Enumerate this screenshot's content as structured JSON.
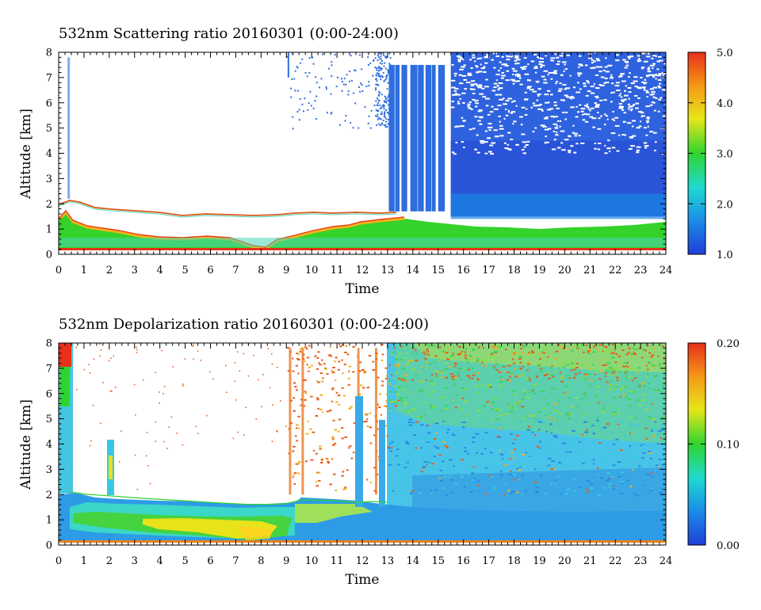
{
  "chart_data": [
    {
      "type": "heatmap",
      "title": "532nm Scattering ratio  20160301 (0:00-24:00)",
      "xlabel": "Time",
      "ylabel": "Altitude [km]",
      "xlim": [
        0,
        24
      ],
      "ylim": [
        0,
        8
      ],
      "x_ticks": [
        "0",
        "1",
        "2",
        "3",
        "4",
        "5",
        "6",
        "7",
        "8",
        "9",
        "10",
        "11",
        "12",
        "13",
        "14",
        "15",
        "16",
        "17",
        "18",
        "19",
        "20",
        "21",
        "22",
        "23",
        "24"
      ],
      "y_ticks": [
        "0",
        "1",
        "2",
        "3",
        "4",
        "5",
        "6",
        "7",
        "8"
      ],
      "colorbar": {
        "range": [
          1.0,
          5.0
        ],
        "tick_labels": [
          "1.0",
          "2.0",
          "3.0",
          "4.0",
          "5.0"
        ],
        "colormap": [
          "#1f3fd8",
          "#1b8de8",
          "#1fd9d0",
          "#2fd52f",
          "#e6e619",
          "#f59a16",
          "#e8301b"
        ]
      },
      "features": {
        "cloud_top_km": [
          2.1,
          2.0,
          1.9,
          1.8,
          1.75,
          1.7,
          1.7,
          1.65,
          1.6,
          1.6,
          1.65,
          1.7,
          1.7,
          1.75,
          1.6,
          1.5,
          1.45
        ],
        "valid_above_km_from_hour": 13,
        "signal_clear_from_hour": 15.5
      }
    },
    {
      "type": "heatmap",
      "title": "532nm Depolarization ratio  20160301 (0:00-24:00)",
      "xlabel": "Time",
      "ylabel": "Altitude [km]",
      "xlim": [
        0,
        24
      ],
      "ylim": [
        0,
        8
      ],
      "x_ticks": [
        "0",
        "1",
        "2",
        "3",
        "4",
        "5",
        "6",
        "7",
        "8",
        "9",
        "10",
        "11",
        "12",
        "13",
        "14",
        "15",
        "16",
        "17",
        "18",
        "19",
        "20",
        "21",
        "22",
        "23",
        "24"
      ],
      "y_ticks": [
        "0",
        "1",
        "2",
        "3",
        "4",
        "5",
        "6",
        "7",
        "8"
      ],
      "colorbar": {
        "range": [
          0.0,
          0.2
        ],
        "tick_labels": [
          "0.00",
          "0.10",
          "0.20"
        ],
        "colormap": [
          "#1f3fd8",
          "#1b8de8",
          "#1fd9d0",
          "#2fd52f",
          "#e6e619",
          "#f59a16",
          "#e8301b"
        ]
      }
    }
  ]
}
